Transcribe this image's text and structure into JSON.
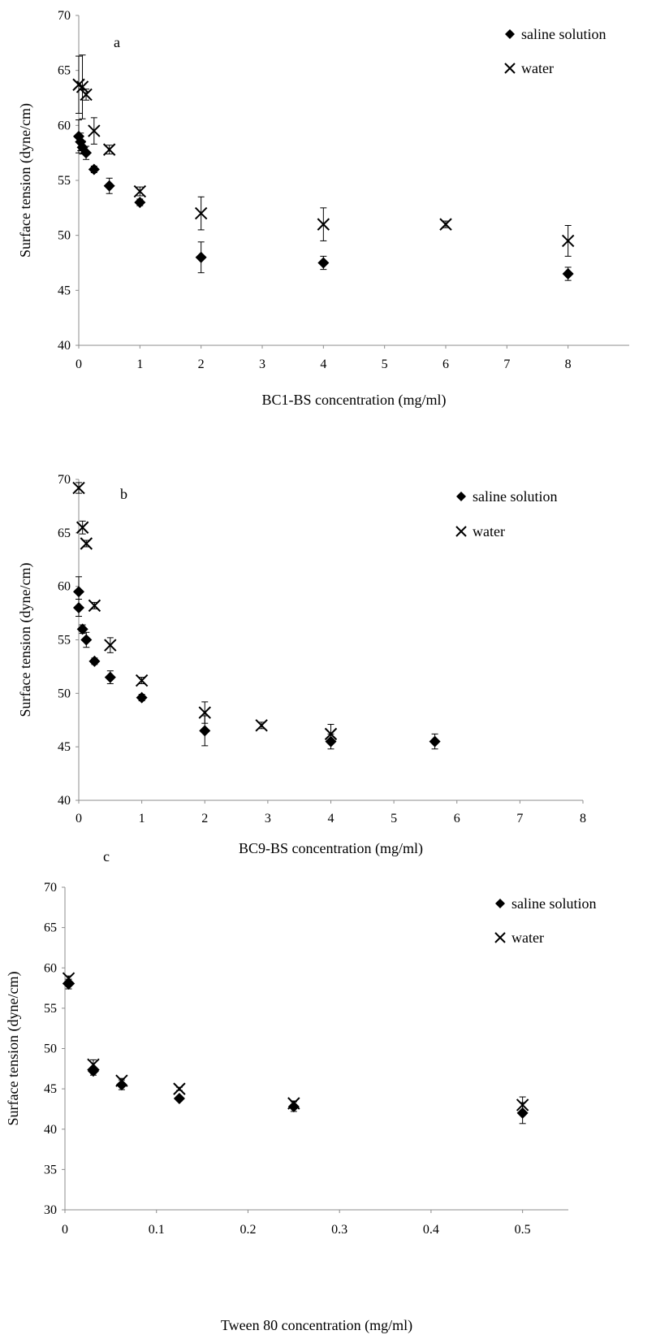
{
  "chart_data": [
    {
      "type": "scatter",
      "panel_label": "a",
      "xlabel": "BC1-BS concentration (mg/ml)",
      "ylabel": "Surface tension (dyne/cm)",
      "categories": [
        "0",
        "1",
        "2",
        "3",
        "4",
        "5",
        "6",
        "7",
        "8"
      ],
      "x_axis": "categorical",
      "ylim": [
        40,
        70
      ],
      "yticks": [
        40,
        45,
        50,
        55,
        60,
        65,
        70
      ],
      "legend_position": "top-right",
      "grid": false,
      "series": [
        {
          "name": "saline solution",
          "marker": "diamond",
          "points": [
            {
              "x": 0.0,
              "y": 59.0,
              "err": 1.5
            },
            {
              "x": 0.03,
              "y": 58.5,
              "err": 0.8
            },
            {
              "x": 0.06,
              "y": 58.0,
              "err": 0.6
            },
            {
              "x": 0.12,
              "y": 57.5,
              "err": 0.6
            },
            {
              "x": 0.25,
              "y": 56.0,
              "err": 0.3
            },
            {
              "x": 0.5,
              "y": 54.5,
              "err": 0.7
            },
            {
              "x": 1.0,
              "y": 53.0,
              "err": 0.3
            },
            {
              "x": 2.0,
              "y": 48.0,
              "err": 1.4
            },
            {
              "x": 4.0,
              "y": 47.5,
              "err": 0.6
            },
            {
              "x": 8.0,
              "y": 46.5,
              "err": 0.6
            }
          ]
        },
        {
          "name": "water",
          "marker": "x",
          "points": [
            {
              "x": 0.0,
              "y": 63.7,
              "err": 2.6
            },
            {
              "x": 0.06,
              "y": 63.5,
              "err": 2.9
            },
            {
              "x": 0.12,
              "y": 62.8,
              "err": 0.5
            },
            {
              "x": 0.25,
              "y": 59.5,
              "err": 1.2
            },
            {
              "x": 0.5,
              "y": 57.8,
              "err": 0.4
            },
            {
              "x": 1.0,
              "y": 54.0,
              "err": 0.4
            },
            {
              "x": 2.0,
              "y": 52.0,
              "err": 1.5
            },
            {
              "x": 4.0,
              "y": 51.0,
              "err": 1.5
            },
            {
              "x": 6.0,
              "y": 51.0,
              "err": 0.3
            },
            {
              "x": 8.0,
              "y": 49.5,
              "err": 1.4
            }
          ]
        }
      ]
    },
    {
      "type": "scatter",
      "panel_label": "b",
      "xlabel": "BC9-BS concentration (mg/ml)",
      "ylabel": "Surface tension (dyne/cm)",
      "xlim": [
        0,
        8
      ],
      "xticks": [
        0,
        1,
        2,
        3,
        4,
        5,
        6,
        7,
        8
      ],
      "ylim": [
        40,
        70
      ],
      "yticks": [
        40,
        45,
        50,
        55,
        60,
        65,
        70
      ],
      "legend_position": "top-right",
      "grid": false,
      "series": [
        {
          "name": "saline solution",
          "marker": "diamond",
          "points": [
            {
              "x": 0.0,
              "y": 59.5,
              "err": 1.4
            },
            {
              "x": 0.0,
              "y": 58.0,
              "err": 0.8
            },
            {
              "x": 0.06,
              "y": 56.0,
              "err": 0.4
            },
            {
              "x": 0.12,
              "y": 55.0,
              "err": 0.7
            },
            {
              "x": 0.25,
              "y": 53.0,
              "err": 0.3
            },
            {
              "x": 0.5,
              "y": 51.5,
              "err": 0.6
            },
            {
              "x": 1.0,
              "y": 49.6,
              "err": 0.3
            },
            {
              "x": 2.0,
              "y": 46.5,
              "err": 1.4
            },
            {
              "x": 4.0,
              "y": 45.5,
              "err": 0.7
            },
            {
              "x": 5.65,
              "y": 45.5,
              "err": 0.7
            }
          ]
        },
        {
          "name": "water",
          "marker": "x",
          "points": [
            {
              "x": 0.0,
              "y": 69.2,
              "err": 0.5
            },
            {
              "x": 0.06,
              "y": 65.5,
              "err": 0.6
            },
            {
              "x": 0.12,
              "y": 64.0,
              "err": 0.3
            },
            {
              "x": 0.25,
              "y": 58.2,
              "err": 0.3
            },
            {
              "x": 0.5,
              "y": 54.5,
              "err": 0.7
            },
            {
              "x": 1.0,
              "y": 51.2,
              "err": 0.3
            },
            {
              "x": 2.0,
              "y": 48.2,
              "err": 1.0
            },
            {
              "x": 2.9,
              "y": 47.0,
              "err": 0.3
            },
            {
              "x": 4.0,
              "y": 46.2,
              "err": 0.9
            }
          ]
        }
      ]
    },
    {
      "type": "scatter",
      "panel_label": "c",
      "xlabel": "Tween 80 concentration (mg/ml)",
      "ylabel": "Surface tension (dyne/cm)",
      "xlim": [
        0,
        0.55
      ],
      "xticks": [
        0,
        0.1,
        0.2,
        0.3,
        0.4,
        0.5
      ],
      "xticklabels": [
        "0",
        "0.1",
        "0.2",
        "0.3",
        "0.4",
        "0.5"
      ],
      "ylim": [
        30,
        70
      ],
      "yticks": [
        30,
        35,
        40,
        45,
        50,
        55,
        60,
        65,
        70
      ],
      "legend_position": "top-right",
      "grid": false,
      "series": [
        {
          "name": "saline solution",
          "marker": "diamond",
          "points": [
            {
              "x": 0.004,
              "y": 58.0,
              "err": 0.6
            },
            {
              "x": 0.031,
              "y": 47.2,
              "err": 0.5
            },
            {
              "x": 0.062,
              "y": 45.5,
              "err": 0.6
            },
            {
              "x": 0.125,
              "y": 43.8,
              "err": 0.3
            },
            {
              "x": 0.25,
              "y": 42.8,
              "err": 0.6
            },
            {
              "x": 0.5,
              "y": 42.0,
              "err": 1.3
            }
          ]
        },
        {
          "name": "water",
          "marker": "x",
          "points": [
            {
              "x": 0.004,
              "y": 58.7,
              "err": 0.3
            },
            {
              "x": 0.031,
              "y": 48.0,
              "err": 0.6
            },
            {
              "x": 0.062,
              "y": 46.0,
              "err": 0.3
            },
            {
              "x": 0.125,
              "y": 45.0,
              "err": 0.2
            },
            {
              "x": 0.25,
              "y": 43.2,
              "err": 0.3
            },
            {
              "x": 0.5,
              "y": 43.0,
              "err": 1.0
            }
          ]
        }
      ]
    }
  ]
}
